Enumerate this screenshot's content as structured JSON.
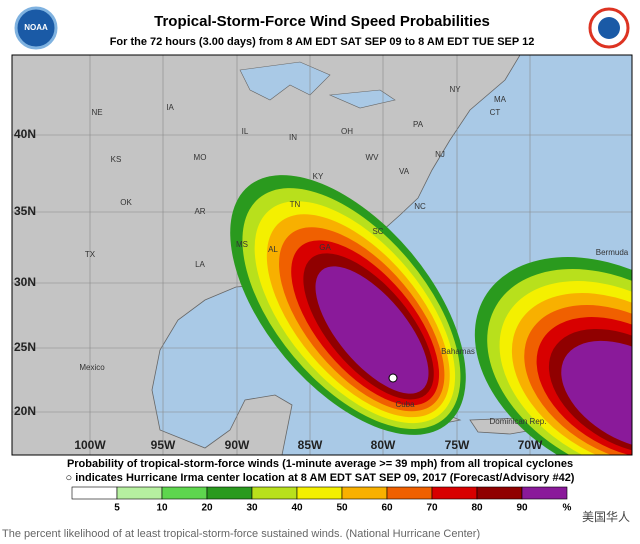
{
  "header": {
    "logo_left": "NOAA",
    "title": "Tropical-Storm-Force Wind Speed Probabilities",
    "subtitle": "For the  72 hours (3.00 days) from 8 AM EDT SAT SEP 09 to 8 AM EDT TUE SEP 12"
  },
  "map": {
    "lat_labels": [
      "40N",
      "35N",
      "30N",
      "25N",
      "20N"
    ],
    "lon_labels": [
      "100W",
      "95W",
      "90W",
      "85W",
      "80W",
      "75W",
      "70W"
    ],
    "place_labels": [
      "NE",
      "IA",
      "IL",
      "IN",
      "OH",
      "PA",
      "NY",
      "MA",
      "CT",
      "NJ",
      "KS",
      "MO",
      "KY",
      "WV",
      "VA",
      "OK",
      "AR",
      "TN",
      "NC",
      "MS",
      "AL",
      "GA",
      "SC",
      "TX",
      "LA",
      "Mexico",
      "Bahamas",
      "Bermuda",
      "Cuba",
      "Dominican Rep."
    ]
  },
  "legend": {
    "line1": "Probability of tropical-storm-force winds (1-minute average >= 39 mph) from all tropical cyclones",
    "line2": "○ indicates Hurricane Irma center location at 8 AM EDT SAT SEP 09, 2017 (Forecast/Advisory #42)",
    "colors": [
      "#ffffff",
      "#b6f0a0",
      "#5ed64e",
      "#2a9a1e",
      "#b8e01c",
      "#f4f000",
      "#f8b000",
      "#f06000",
      "#d80000",
      "#900000",
      "#8a1a9a"
    ],
    "ticks": [
      5,
      10,
      20,
      30,
      40,
      50,
      60,
      70,
      80,
      90
    ],
    "unit": "%"
  },
  "caption": "The percent likelihood of at least tropical-storm-force sustained winds. (National Hurricane Center)",
  "watermark": "美国华人"
}
